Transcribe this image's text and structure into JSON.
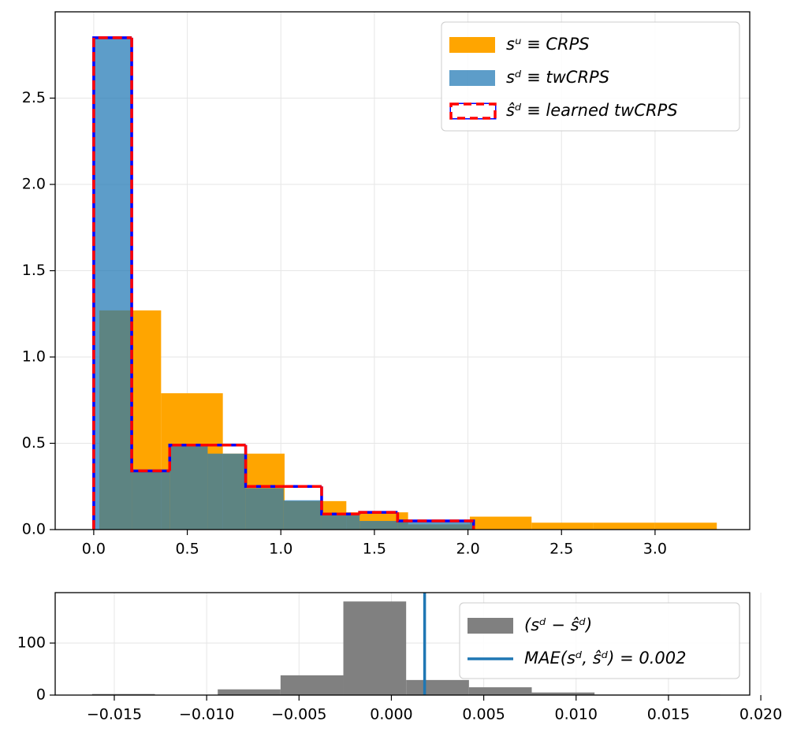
{
  "chart_data": [
    {
      "type": "histogram",
      "xlim": [
        -0.206,
        3.506
      ],
      "ylim": [
        0,
        3.0
      ],
      "xticks": [
        {
          "value": 0,
          "label": "0.0"
        },
        0.5,
        {
          "value": 1,
          "label": "1.0"
        },
        1.5,
        {
          "value": 2,
          "label": "2.0"
        },
        2.5,
        {
          "value": 3,
          "label": "3.0"
        }
      ],
      "yticks": [
        {
          "value": 0,
          "label": "0.0"
        },
        0.5,
        {
          "value": 1,
          "label": "1.0"
        },
        1.5,
        {
          "value": 2,
          "label": "2.0"
        },
        2.5
      ],
      "grid": true,
      "legend": "upper right",
      "series": [
        {
          "name": "sᵘ ≡ CRPS",
          "color": "#ffa500",
          "histtype": "bar",
          "opacity": 1,
          "bins": [
            0.03,
            0.36,
            0.69,
            1.02,
            1.35,
            1.68,
            2.01,
            2.34,
            2.67,
            3.0,
            3.33
          ],
          "values": [
            1.27,
            0.79,
            0.44,
            0.165,
            0.1,
            0.03,
            0.075,
            0.04,
            0.04,
            0.04
          ]
        },
        {
          "name": "sᵈ ≡ twCRPS",
          "color": "#1f77b4",
          "histtype": "bar",
          "opacity": 0.72,
          "bins": [
            0,
            0.203,
            0.406,
            0.609,
            0.812,
            1.015,
            1.218,
            1.421,
            1.624,
            1.827,
            2.03
          ],
          "values": [
            2.85,
            0.34,
            0.49,
            0.44,
            0.24,
            0.17,
            0.09,
            0.05,
            0.05,
            0.05
          ]
        },
        {
          "name": "ŝᵈ ≡ learned twCRPS",
          "color": "#ff0000",
          "gapcolor": "#0000ff",
          "histtype": "step",
          "linestyle": "dashed",
          "bins": [
            0,
            0.203,
            0.406,
            0.609,
            0.812,
            1.015,
            1.218,
            1.421,
            1.624,
            1.827,
            2.03
          ],
          "values": [
            2.85,
            0.34,
            0.49,
            0.49,
            0.25,
            0.25,
            0.09,
            0.1,
            0.05,
            0.05
          ]
        }
      ]
    },
    {
      "type": "histogram",
      "xlim": [
        -0.0182,
        0.0194
      ],
      "ylim": [
        0,
        197
      ],
      "xticks": [
        {
          "value": -0.015,
          "label": "−0.015"
        },
        {
          "value": -0.01,
          "label": "−0.010"
        },
        {
          "value": -0.005,
          "label": "−0.005"
        },
        {
          "value": 0,
          "label": "0.000"
        },
        0.005,
        {
          "value": 0.01,
          "label": "0.010"
        },
        0.015,
        {
          "value": 0.02,
          "label": "0.020"
        }
      ],
      "yticks": [
        0,
        100
      ],
      "grid": true,
      "legend": "upper right",
      "series": [
        {
          "name": "(sᵈ − ŝᵈ)",
          "color": "#808080",
          "histtype": "bar",
          "opacity": 1,
          "bins": [
            -0.0162,
            -0.0128,
            -0.0094,
            -0.006,
            -0.0026,
            0.0008,
            0.0042,
            0.0076,
            0.011,
            0.0144,
            0.0178
          ],
          "values": [
            2,
            0,
            11,
            38,
            180,
            29,
            15,
            5,
            1,
            1
          ]
        }
      ],
      "lines": [
        {
          "name": "MAE(sᵈ, ŝᵈ) = 0.002",
          "color": "#1f77b4",
          "value": 0.0018
        }
      ]
    }
  ]
}
